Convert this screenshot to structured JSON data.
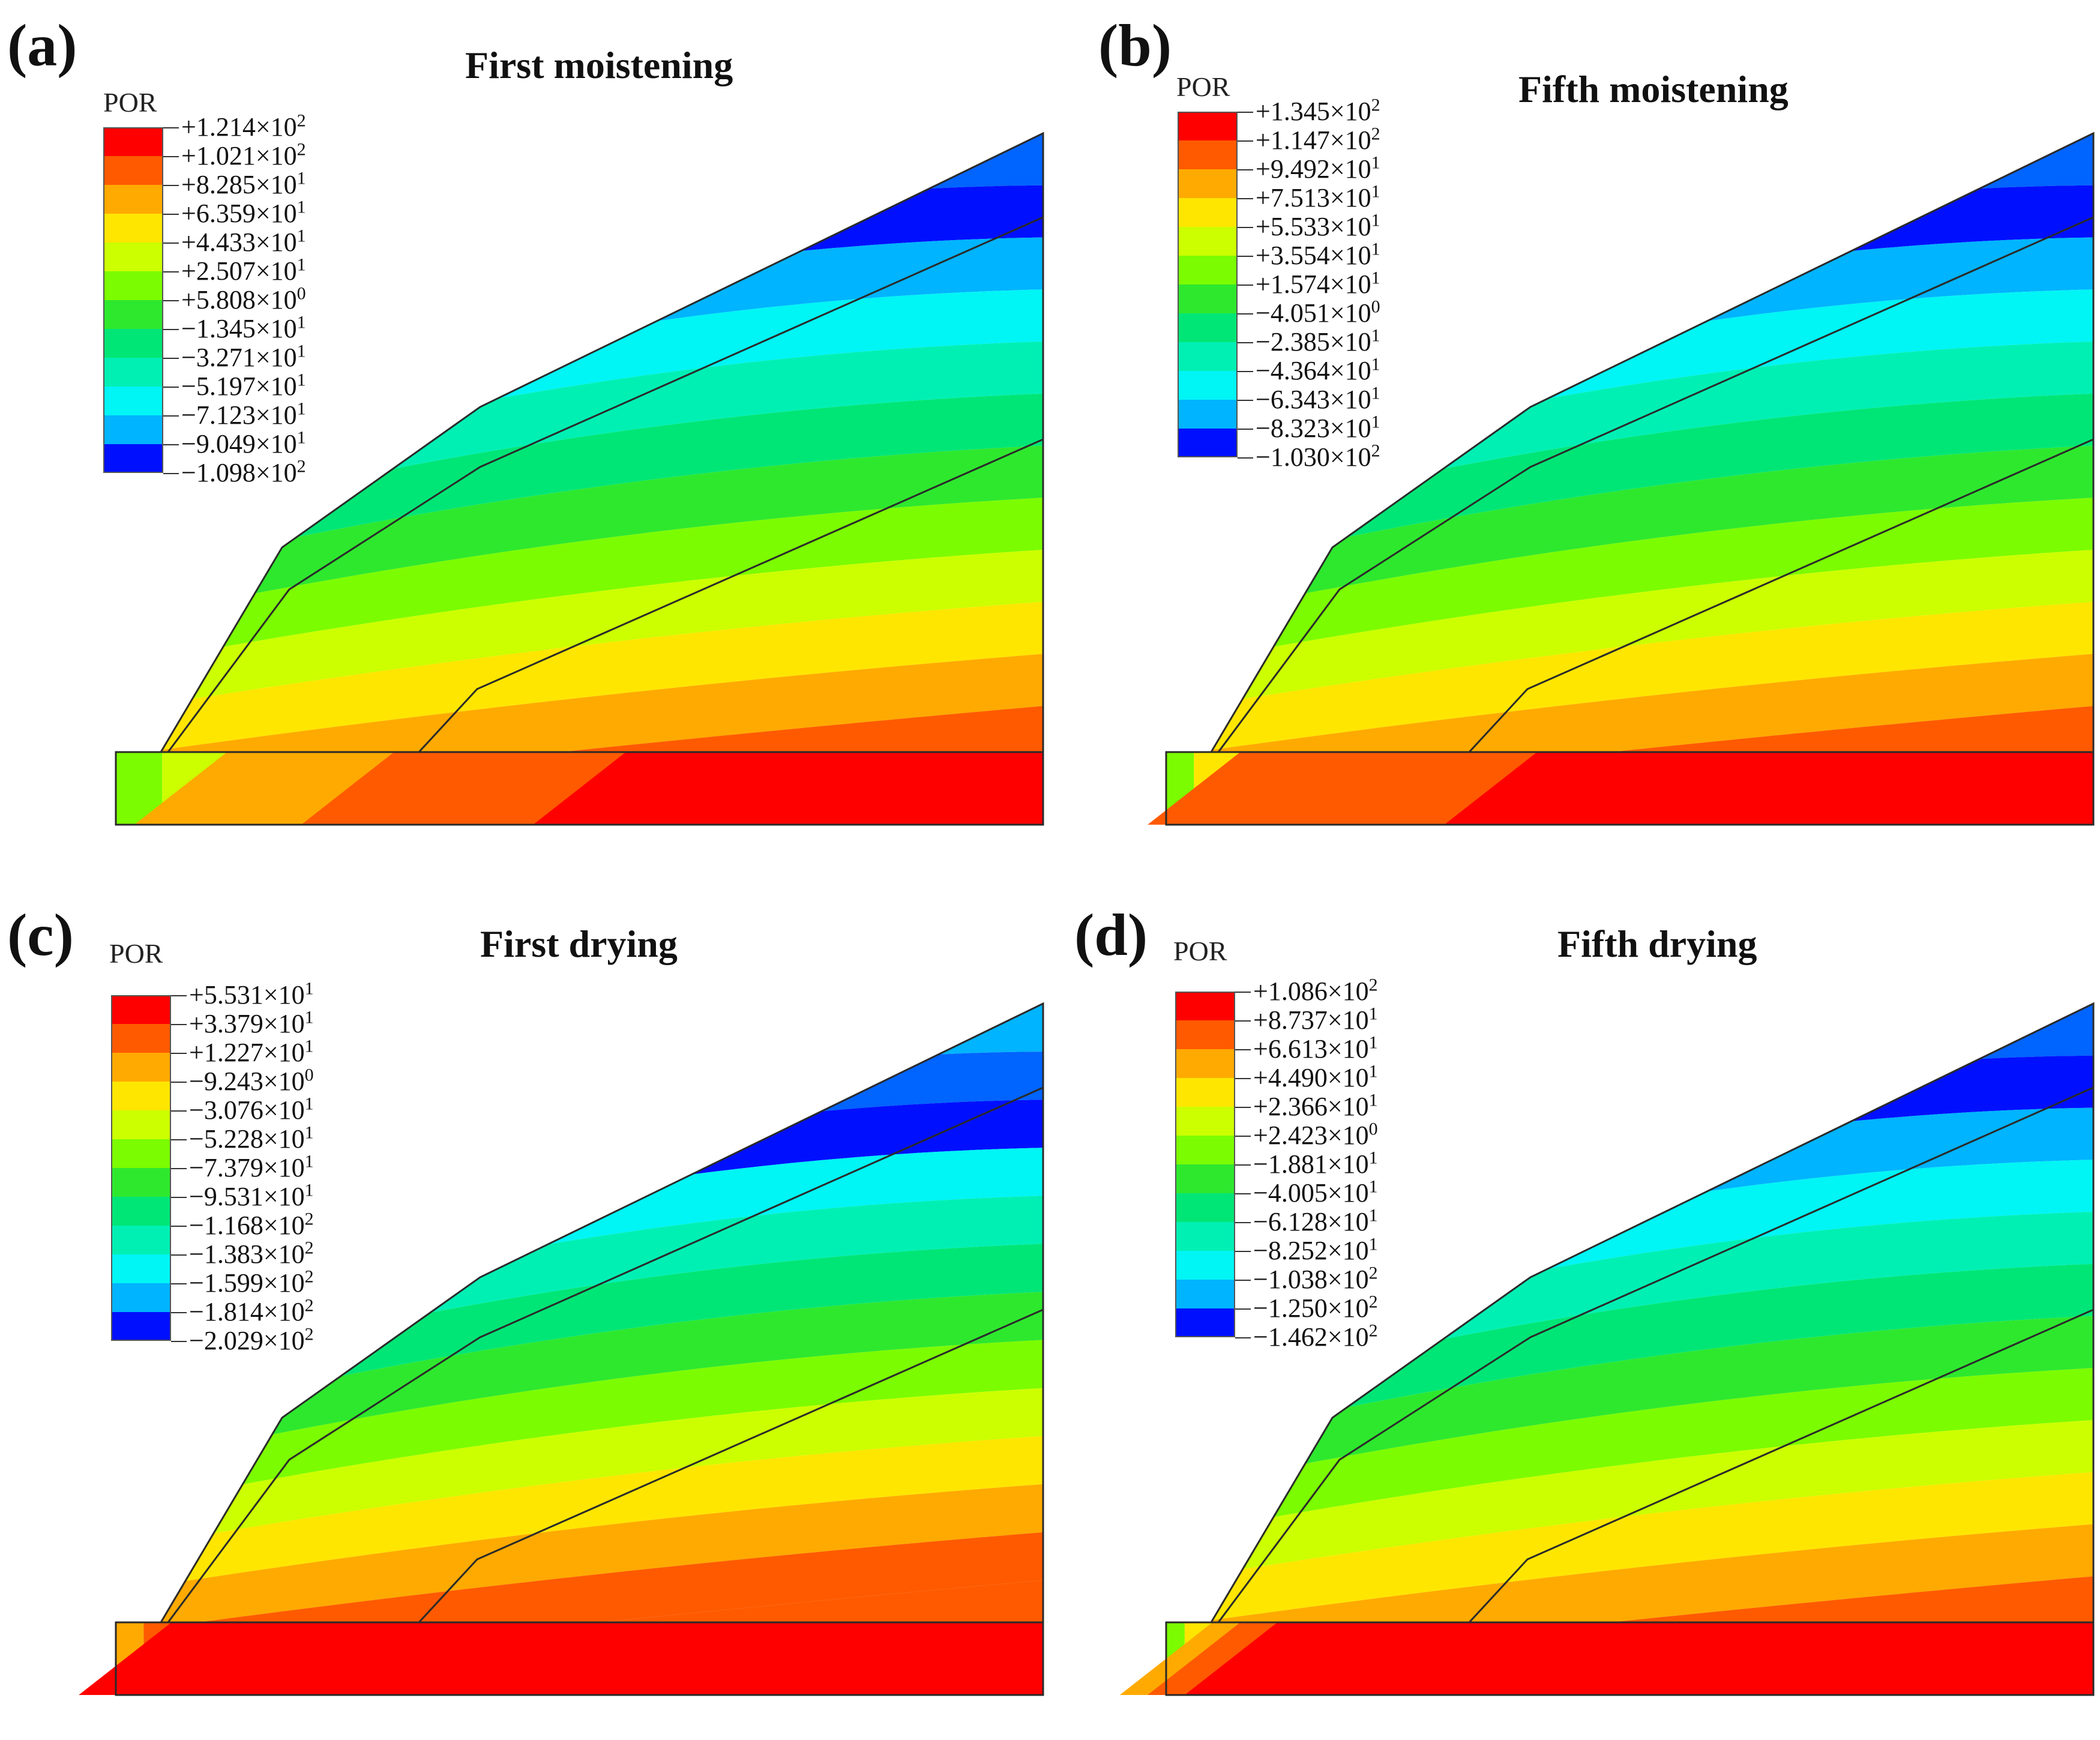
{
  "figure": {
    "panels": [
      {
        "letter": "(a)",
        "title": "First moistening",
        "variable": "POR",
        "legend": [
          {
            "mantissa": "+1.214",
            "exp": "2",
            "color": "#ff0000"
          },
          {
            "mantissa": "+1.021",
            "exp": "2",
            "color": "#ff5a00"
          },
          {
            "mantissa": "+8.285",
            "exp": "1",
            "color": "#ffaa00"
          },
          {
            "mantissa": "+6.359",
            "exp": "1",
            "color": "#ffe600"
          },
          {
            "mantissa": "+4.433",
            "exp": "1",
            "color": "#ccff00"
          },
          {
            "mantissa": "+2.507",
            "exp": "1",
            "color": "#7cfc00"
          },
          {
            "mantissa": "+5.808",
            "exp": "0",
            "color": "#2ee82e"
          },
          {
            "mantissa": "−1.345",
            "exp": "1",
            "color": "#00e676"
          },
          {
            "mantissa": "−3.271",
            "exp": "1",
            "color": "#00f0b4"
          },
          {
            "mantissa": "−5.197",
            "exp": "1",
            "color": "#00f5f5"
          },
          {
            "mantissa": "−7.123",
            "exp": "1",
            "color": "#00b4ff"
          },
          {
            "mantissa": "−9.049",
            "exp": "1",
            "color": "#0064ff"
          },
          {
            "mantissa": "−1.098",
            "exp": "2",
            "color": "#0010ff"
          }
        ],
        "bands": [
          "#00b4ff",
          "#00f5f5",
          "#00f0b4",
          "#00e676",
          "#2ee82e",
          "#7cfc00",
          "#ccff00",
          "#ffe600",
          "#ffaa00",
          "#ff5a00"
        ],
        "top_bands": [
          "#0064ff",
          "#0010ff"
        ],
        "base_colors": [
          "#7cfc00",
          "#ccff00",
          "#ffaa00",
          "#ff5a00",
          "#ff0000"
        ],
        "base_split": [
          0.05,
          0.12,
          0.3,
          0.55,
          0.75
        ]
      },
      {
        "letter": "(b)",
        "title": "Fifth moistening",
        "variable": "POR",
        "legend": [
          {
            "mantissa": "+1.345",
            "exp": "2",
            "color": "#ff0000"
          },
          {
            "mantissa": "+1.147",
            "exp": "2",
            "color": "#ff5a00"
          },
          {
            "mantissa": "+9.492",
            "exp": "1",
            "color": "#ffaa00"
          },
          {
            "mantissa": "+7.513",
            "exp": "1",
            "color": "#ffe600"
          },
          {
            "mantissa": "+5.533",
            "exp": "1",
            "color": "#ccff00"
          },
          {
            "mantissa": "+3.554",
            "exp": "1",
            "color": "#7cfc00"
          },
          {
            "mantissa": "+1.574",
            "exp": "1",
            "color": "#2ee82e"
          },
          {
            "mantissa": "−4.051",
            "exp": "0",
            "color": "#00e676"
          },
          {
            "mantissa": "−2.385",
            "exp": "1",
            "color": "#00f0b4"
          },
          {
            "mantissa": "−4.364",
            "exp": "1",
            "color": "#00f5f5"
          },
          {
            "mantissa": "−6.343",
            "exp": "1",
            "color": "#00b4ff"
          },
          {
            "mantissa": "−8.323",
            "exp": "1",
            "color": "#0064ff"
          },
          {
            "mantissa": "−1.030",
            "exp": "2",
            "color": "#0010ff"
          }
        ],
        "bands": [
          "#00b4ff",
          "#00f5f5",
          "#00f0b4",
          "#00e676",
          "#2ee82e",
          "#7cfc00",
          "#ccff00",
          "#ffe600",
          "#ffaa00",
          "#ff5a00"
        ],
        "top_bands": [
          "#0064ff",
          "#0010ff"
        ],
        "base_colors": [
          "#7cfc00",
          "#ffe600",
          "#ff5a00",
          "#ff5a00",
          "#ff0000"
        ],
        "base_split": [
          0.03,
          0.08,
          0.12,
          0.4,
          0.55
        ]
      },
      {
        "letter": "(c)",
        "title": "First drying",
        "variable": "POR",
        "legend": [
          {
            "mantissa": "+5.531",
            "exp": "1",
            "color": "#ff0000"
          },
          {
            "mantissa": "+3.379",
            "exp": "1",
            "color": "#ff5a00"
          },
          {
            "mantissa": "+1.227",
            "exp": "1",
            "color": "#ffaa00"
          },
          {
            "mantissa": "−9.243",
            "exp": "0",
            "color": "#ffe600"
          },
          {
            "mantissa": "−3.076",
            "exp": "1",
            "color": "#ccff00"
          },
          {
            "mantissa": "−5.228",
            "exp": "1",
            "color": "#7cfc00"
          },
          {
            "mantissa": "−7.379",
            "exp": "1",
            "color": "#2ee82e"
          },
          {
            "mantissa": "−9.531",
            "exp": "1",
            "color": "#00e676"
          },
          {
            "mantissa": "−1.168",
            "exp": "2",
            "color": "#00f0b4"
          },
          {
            "mantissa": "−1.383",
            "exp": "2",
            "color": "#00f5f5"
          },
          {
            "mantissa": "−1.599",
            "exp": "2",
            "color": "#00b4ff"
          },
          {
            "mantissa": "−1.814",
            "exp": "2",
            "color": "#0064ff"
          },
          {
            "mantissa": "−2.029",
            "exp": "2",
            "color": "#0010ff"
          }
        ],
        "bands": [
          "#00f5f5",
          "#00f0b4",
          "#00e676",
          "#2ee82e",
          "#7cfc00",
          "#ccff00",
          "#ffe600",
          "#ffaa00",
          "#ff5a00",
          "#ff5a00"
        ],
        "top_bands": [
          "#00b4ff",
          "#0064ff",
          "#0010ff"
        ],
        "base_colors": [
          "#ffaa00",
          "#ff5a00",
          "#ff0000",
          "#ff0000",
          "#ff0000"
        ],
        "base_split": [
          0.03,
          0.06,
          0.3,
          0.6,
          0.8
        ]
      },
      {
        "letter": "(d)",
        "title": "Fifth drying",
        "variable": "POR",
        "legend": [
          {
            "mantissa": "+1.086",
            "exp": "2",
            "color": "#ff0000"
          },
          {
            "mantissa": "+8.737",
            "exp": "1",
            "color": "#ff5a00"
          },
          {
            "mantissa": "+6.613",
            "exp": "1",
            "color": "#ffaa00"
          },
          {
            "mantissa": "+4.490",
            "exp": "1",
            "color": "#ffe600"
          },
          {
            "mantissa": "+2.366",
            "exp": "1",
            "color": "#ccff00"
          },
          {
            "mantissa": "+2.423",
            "exp": "0",
            "color": "#7cfc00"
          },
          {
            "mantissa": "−1.881",
            "exp": "1",
            "color": "#2ee82e"
          },
          {
            "mantissa": "−4.005",
            "exp": "1",
            "color": "#00e676"
          },
          {
            "mantissa": "−6.128",
            "exp": "1",
            "color": "#00f0b4"
          },
          {
            "mantissa": "−8.252",
            "exp": "1",
            "color": "#00f5f5"
          },
          {
            "mantissa": "−1.038",
            "exp": "2",
            "color": "#00b4ff"
          },
          {
            "mantissa": "−1.250",
            "exp": "2",
            "color": "#0064ff"
          },
          {
            "mantissa": "−1.462",
            "exp": "2",
            "color": "#0010ff"
          }
        ],
        "bands": [
          "#00b4ff",
          "#00f5f5",
          "#00f0b4",
          "#00e676",
          "#2ee82e",
          "#7cfc00",
          "#ccff00",
          "#ffe600",
          "#ffaa00",
          "#ff5a00"
        ],
        "top_bands": [
          "#0064ff",
          "#0010ff"
        ],
        "base_colors": [
          "#7cfc00",
          "#ffe600",
          "#ffaa00",
          "#ff5a00",
          "#ff0000"
        ],
        "base_split": [
          0.02,
          0.05,
          0.08,
          0.12,
          0.12
        ]
      }
    ]
  }
}
